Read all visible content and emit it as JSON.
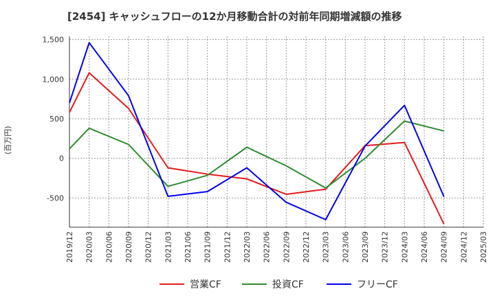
{
  "chart_data": {
    "type": "line",
    "title": "[2454]  キャッシュフローの12か月移動合計の対前年同期増減額の推移",
    "ylabel": "(百万円)",
    "xlabel": "",
    "ylim": [
      -870,
      1540
    ],
    "yticks": [
      1500,
      1000,
      500,
      0,
      -500
    ],
    "ytick_labels": [
      "1,500",
      "1,000",
      "500",
      "0",
      "-500"
    ],
    "categories": [
      "2019/12",
      "2020/03",
      "2020/06",
      "2020/09",
      "2020/12",
      "2021/03",
      "2021/06",
      "2021/09",
      "2021/12",
      "2022/03",
      "2022/06",
      "2022/09",
      "2022/12",
      "2023/03",
      "2023/06",
      "2023/09",
      "2023/12",
      "2024/03",
      "2024/06",
      "2024/09",
      "2024/12",
      "2025/03"
    ],
    "grid": true,
    "legend_position": "bottom",
    "series": [
      {
        "name": "営業CF",
        "color": "#e41a1c",
        "values": [
          580,
          1080,
          null,
          630,
          null,
          -120,
          null,
          -200,
          null,
          -260,
          null,
          -455,
          null,
          -390,
          null,
          160,
          null,
          200,
          null,
          -830,
          null,
          null
        ]
      },
      {
        "name": "投資CF",
        "color": "#2e8b2e",
        "values": [
          120,
          380,
          null,
          175,
          null,
          -355,
          null,
          -215,
          null,
          140,
          null,
          -95,
          null,
          -375,
          null,
          0,
          null,
          470,
          null,
          345,
          null,
          null
        ]
      },
      {
        "name": "フリーCF",
        "color": "#0000ee",
        "values": [
          700,
          1460,
          null,
          790,
          null,
          -480,
          null,
          -420,
          null,
          -120,
          null,
          -555,
          null,
          -775,
          null,
          155,
          null,
          670,
          null,
          -485,
          null,
          null
        ]
      }
    ]
  }
}
